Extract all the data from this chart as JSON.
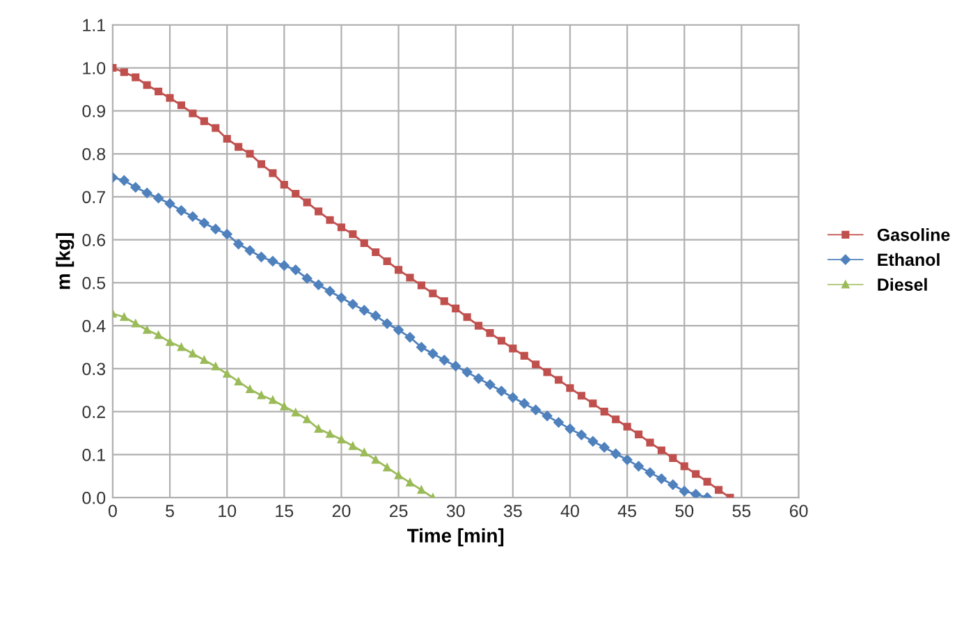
{
  "chart_data": {
    "type": "line",
    "xlabel": "Time [min]",
    "ylabel": "m [kg]",
    "xlim": [
      0,
      60
    ],
    "xticks": [
      0,
      5,
      10,
      15,
      20,
      25,
      30,
      35,
      40,
      45,
      50,
      55,
      60
    ],
    "ylim": [
      0,
      1.1
    ],
    "yticks": [
      {
        "value": 0,
        "label": "0.0"
      },
      0.1,
      0.2,
      0.3,
      0.4,
      0.5,
      0.6,
      0.7,
      0.8,
      0.9,
      {
        "value": 1,
        "label": "1.0"
      },
      1.1
    ],
    "grid": true,
    "legend": "right",
    "line_style": "solid",
    "series": [
      {
        "name": "Gasoline",
        "color": "#c0504d",
        "marker": "square",
        "x": [
          0,
          1,
          2,
          3,
          4,
          5,
          6,
          7,
          8,
          9,
          10,
          11,
          12,
          13,
          14,
          15,
          16,
          17,
          18,
          19,
          20,
          21,
          22,
          23,
          24,
          25,
          26,
          27,
          28,
          29,
          30,
          31,
          32,
          33,
          34,
          35,
          36,
          37,
          38,
          39,
          40,
          41,
          42,
          43,
          44,
          45,
          46,
          47,
          48,
          49,
          50,
          51,
          52,
          53,
          54
        ],
        "values": [
          1.0,
          0.99,
          0.978,
          0.96,
          0.945,
          0.93,
          0.913,
          0.894,
          0.876,
          0.86,
          0.835,
          0.816,
          0.8,
          0.776,
          0.755,
          0.728,
          0.707,
          0.687,
          0.666,
          0.646,
          0.629,
          0.613,
          0.592,
          0.571,
          0.55,
          0.53,
          0.512,
          0.494,
          0.475,
          0.457,
          0.44,
          0.42,
          0.4,
          0.383,
          0.365,
          0.347,
          0.33,
          0.31,
          0.292,
          0.274,
          0.255,
          0.237,
          0.219,
          0.2,
          0.182,
          0.165,
          0.147,
          0.128,
          0.11,
          0.092,
          0.073,
          0.055,
          0.037,
          0.018,
          0.0
        ]
      },
      {
        "name": "Ethanol",
        "color": "#4f81bd",
        "marker": "diamond",
        "x": [
          0,
          1,
          2,
          3,
          4,
          5,
          6,
          7,
          8,
          9,
          10,
          11,
          12,
          13,
          14,
          15,
          16,
          17,
          18,
          19,
          20,
          21,
          22,
          23,
          24,
          25,
          26,
          27,
          28,
          29,
          30,
          31,
          32,
          33,
          34,
          35,
          36,
          37,
          38,
          39,
          40,
          41,
          42,
          43,
          44,
          45,
          46,
          47,
          48,
          49,
          50,
          51,
          52
        ],
        "values": [
          0.745,
          0.738,
          0.722,
          0.709,
          0.697,
          0.684,
          0.668,
          0.654,
          0.639,
          0.625,
          0.613,
          0.59,
          0.575,
          0.56,
          0.55,
          0.54,
          0.53,
          0.51,
          0.495,
          0.48,
          0.465,
          0.45,
          0.436,
          0.423,
          0.405,
          0.39,
          0.373,
          0.35,
          0.335,
          0.32,
          0.306,
          0.292,
          0.277,
          0.263,
          0.248,
          0.233,
          0.219,
          0.204,
          0.19,
          0.175,
          0.16,
          0.146,
          0.131,
          0.117,
          0.102,
          0.088,
          0.073,
          0.058,
          0.044,
          0.03,
          0.015,
          0.008,
          0.0
        ]
      },
      {
        "name": "Diesel",
        "color": "#9bbb59",
        "marker": "triangle",
        "x": [
          0,
          1,
          2,
          3,
          4,
          5,
          6,
          7,
          8,
          9,
          10,
          11,
          12,
          13,
          14,
          15,
          16,
          17,
          18,
          19,
          20,
          21,
          22,
          23,
          24,
          25,
          26,
          27,
          28
        ],
        "values": [
          0.428,
          0.42,
          0.405,
          0.39,
          0.378,
          0.362,
          0.35,
          0.335,
          0.32,
          0.305,
          0.288,
          0.27,
          0.252,
          0.238,
          0.227,
          0.212,
          0.198,
          0.182,
          0.16,
          0.148,
          0.135,
          0.12,
          0.105,
          0.088,
          0.07,
          0.052,
          0.035,
          0.018,
          0.0
        ]
      }
    ]
  }
}
